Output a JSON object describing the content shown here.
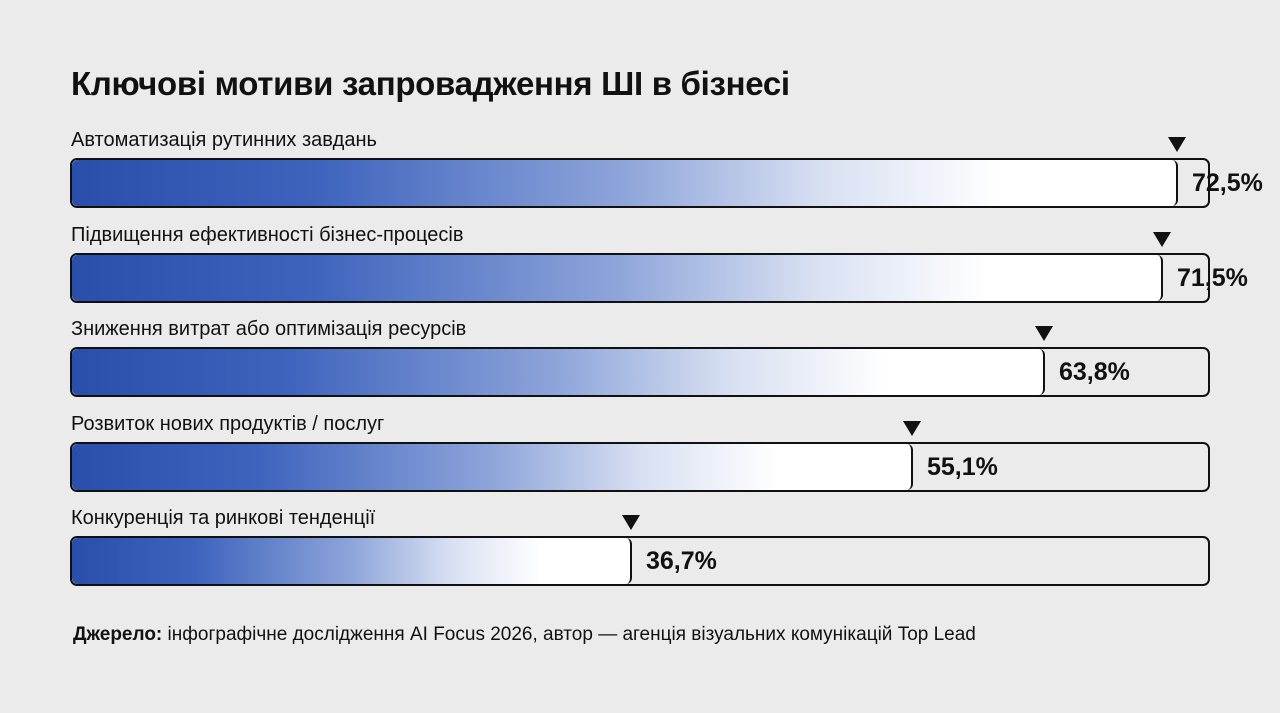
{
  "chart_data": {
    "type": "bar",
    "orientation": "horizontal",
    "title": "Ключові мотиви запровадження ШІ в бізнесі",
    "categories": [
      "Автоматизація  рутинних завдань",
      "Підвищення ефективності бізнес-процесів",
      "Зниження витрат або оптимізація ресурсів",
      "Розвиток нових продуктів / послуг",
      "Конкуренція та ринкові тенденції"
    ],
    "values": [
      72.5,
      71.5,
      63.8,
      55.1,
      36.7
    ],
    "value_labels": [
      "72,5%",
      "71,5%",
      "63,8%",
      "55,1%",
      "36,7%"
    ],
    "unit": "%",
    "xlim": [
      0,
      100
    ],
    "grid": false,
    "colors": {
      "bar_gradient_start": "#2a4fab",
      "bar_gradient_end": "#ffffff",
      "outline": "#111111",
      "background": "#ebebeb"
    }
  },
  "source": {
    "label": "Джерело:",
    "text": " інфографічне дослідження AI Focus 2026, автор — агенція візуальних комунікацій Top Lead"
  }
}
